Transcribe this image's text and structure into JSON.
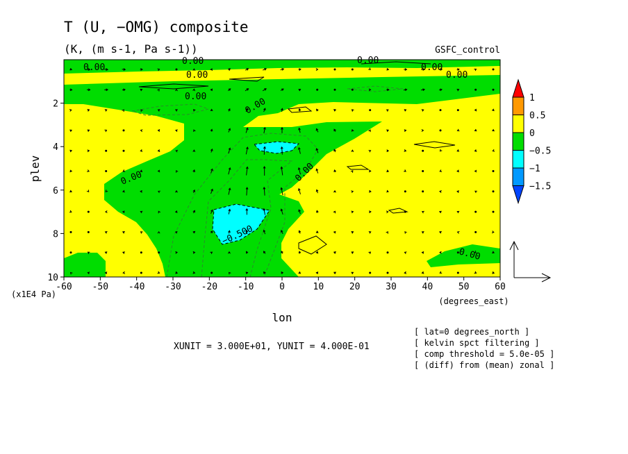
{
  "chart_data": {
    "type": "contour",
    "title": "T (U, −OMG) composite",
    "subtitle": "(K, (m s-1, Pa s-1))",
    "experiment": "GSFC_control",
    "xlabel": "lon",
    "xunits": "(degrees_east)",
    "ylabel": "plev",
    "yunits": "(x1E4 Pa)",
    "xlim": [
      -60,
      60
    ],
    "ylim": [
      10,
      0
    ],
    "x_ticks": [
      -60,
      -50,
      -40,
      -30,
      -20,
      -10,
      0,
      10,
      20,
      30,
      40,
      50,
      60
    ],
    "y_ticks": [
      2,
      4,
      6,
      8,
      10
    ],
    "colorbar": {
      "levels": [
        "1",
        "0.5",
        "0",
        "−0.5",
        "−1",
        "−1.5"
      ],
      "colors": [
        "#ff0000",
        "#ff9900",
        "#ffff00",
        "#00dd00",
        "#00ffff",
        "#0099ff",
        "#0044ff"
      ]
    },
    "contour_labels": [
      "0.00",
      "−0.500"
    ],
    "vector_units": "XUNIT = 3.000E+01, YUNIT = 4.000E-01",
    "notes": [
      "[ lat=0 degrees_north ]",
      "[ kelvin spct filtering ]",
      "[ comp threshold = 5.0e-05 ]",
      "[ (diff) from (mean) zonal ]"
    ]
  }
}
